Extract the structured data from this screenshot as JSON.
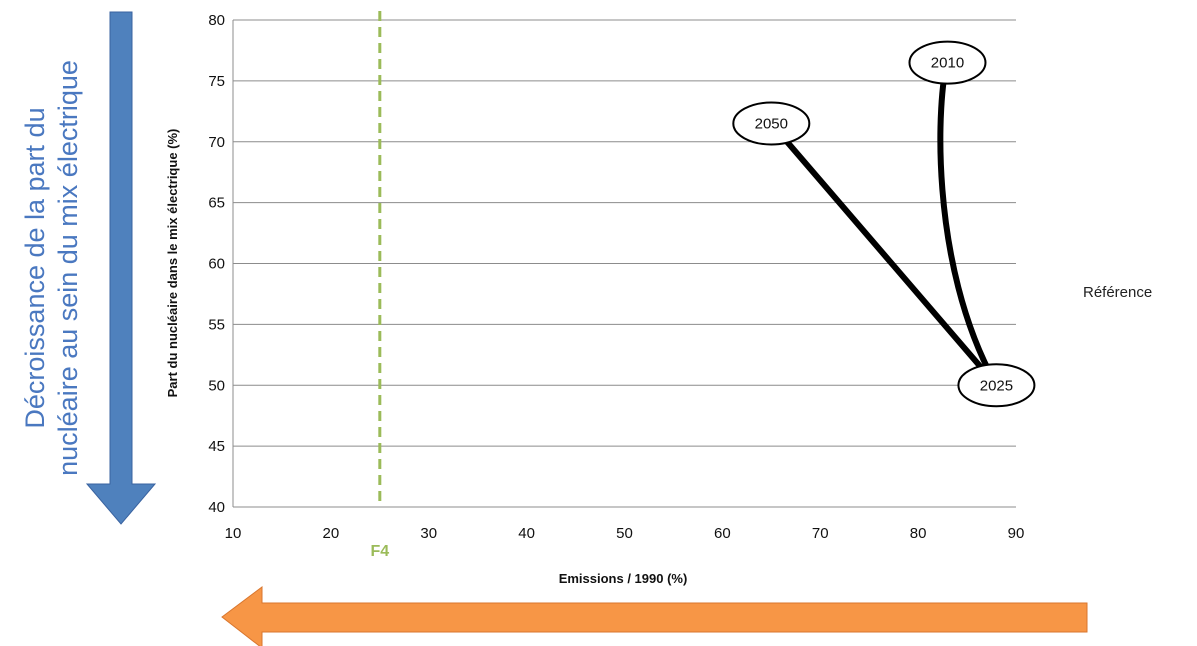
{
  "chart_data": {
    "type": "line",
    "xlabel": "Emissions / 1990 (%)",
    "ylabel": "Part du nucléaire dans le mix électrique (%)",
    "xlim": [
      10,
      90
    ],
    "ylim": [
      40,
      80
    ],
    "x_ticks": [
      "10",
      "20",
      "30",
      "40",
      "50",
      "60",
      "70",
      "80",
      "90"
    ],
    "y_ticks": [
      "40",
      "45",
      "50",
      "55",
      "60",
      "65",
      "70",
      "75",
      "80"
    ],
    "grid": "horizontal",
    "series": [
      {
        "name": "Référence",
        "color": "#000000",
        "points": [
          {
            "label": "2010",
            "x": 83,
            "y": 76.5
          },
          {
            "label": "2025",
            "x": 88,
            "y": 50
          },
          {
            "label": "2050",
            "x": 65,
            "y": 71.5
          }
        ]
      }
    ],
    "reference_line": {
      "label": "F4",
      "x": 25,
      "color": "#9bbb59",
      "style": "dashed"
    }
  },
  "annotations": {
    "left_arrow_text_line1": "Décroissance de la part du",
    "left_arrow_text_line2": "nucléaire au sein du mix électrique",
    "left_arrow_color": "#4f81bd",
    "bottom_arrow_color": "#f79646"
  }
}
